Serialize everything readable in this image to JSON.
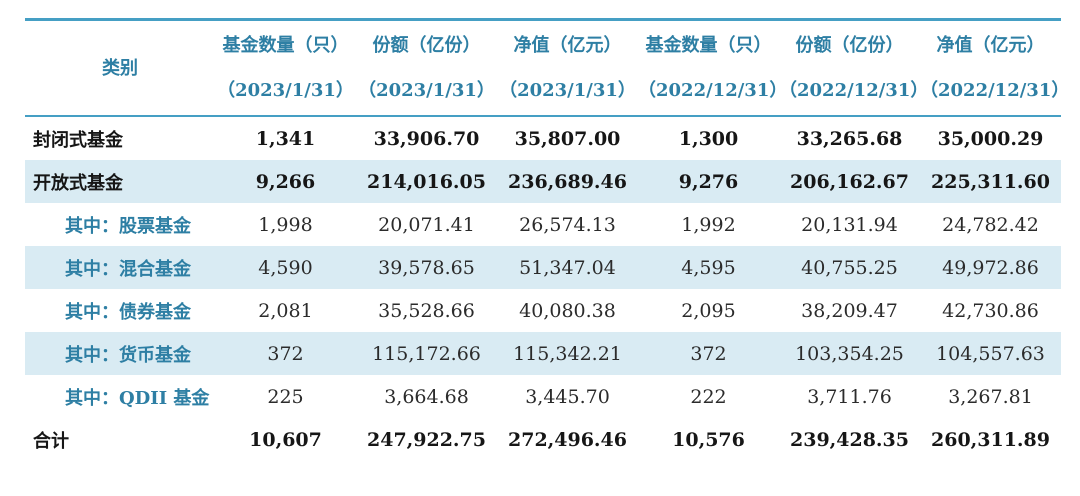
{
  "colors": {
    "accent_text": "#2e7fa4",
    "border_line": "#459fc4",
    "stripe_bg": "#d9ebf3",
    "value_text": "#2b2b2b"
  },
  "table": {
    "columns": [
      {
        "label": "类别",
        "sub": ""
      },
      {
        "label": "基金数量（只）",
        "sub": "（2023/1/31）"
      },
      {
        "label": "份额（亿份）",
        "sub": "（2023/1/31）"
      },
      {
        "label": "净值（亿元）",
        "sub": "（2023/1/31）"
      },
      {
        "label": "基金数量（只）",
        "sub": "（2022/12/31）"
      },
      {
        "label": "份额（亿份）",
        "sub": "（2022/12/31）"
      },
      {
        "label": "净值（亿元）",
        "sub": "（2022/12/31）"
      }
    ],
    "rows": [
      {
        "label": "封闭式基金",
        "values": [
          "1,341",
          "33,906.70",
          "35,807.00",
          "1,300",
          "33,265.68",
          "35,000.29"
        ]
      },
      {
        "label": "开放式基金",
        "values": [
          "9,266",
          "214,016.05",
          "236,689.46",
          "9,276",
          "206,162.67",
          "225,311.60"
        ]
      },
      {
        "label": "其中：股票基金",
        "values": [
          "1,998",
          "20,071.41",
          "26,574.13",
          "1,992",
          "20,131.94",
          "24,782.42"
        ]
      },
      {
        "label": "其中：混合基金",
        "values": [
          "4,590",
          "39,578.65",
          "51,347.04",
          "4,595",
          "40,755.25",
          "49,972.86"
        ]
      },
      {
        "label": "其中：债券基金",
        "values": [
          "2,081",
          "35,528.66",
          "40,080.38",
          "2,095",
          "38,209.47",
          "42,730.86"
        ]
      },
      {
        "label": "其中：货币基金",
        "values": [
          "372",
          "115,172.66",
          "115,342.21",
          "372",
          "103,354.25",
          "104,557.63"
        ]
      },
      {
        "label": "其中：QDII 基金",
        "values": [
          "225",
          "3,664.68",
          "3,445.70",
          "222",
          "3,711.76",
          "3,267.81"
        ]
      },
      {
        "label": "合计",
        "values": [
          "10,607",
          "247,922.75",
          "272,496.46",
          "10,576",
          "239,428.35",
          "260,311.89"
        ]
      }
    ]
  },
  "chart_data": {
    "type": "table",
    "title": "",
    "categories": [
      "封闭式基金",
      "开放式基金",
      "其中：股票基金",
      "其中：混合基金",
      "其中：债券基金",
      "其中：货币基金",
      "其中：QDII 基金",
      "合计"
    ],
    "series": [
      {
        "name": "基金数量（只）（2023/1/31）",
        "values": [
          1341,
          9266,
          1998,
          4590,
          2081,
          372,
          225,
          10607
        ]
      },
      {
        "name": "份额（亿份）（2023/1/31）",
        "values": [
          33906.7,
          214016.05,
          20071.41,
          39578.65,
          35528.66,
          115172.66,
          3664.68,
          247922.75
        ]
      },
      {
        "name": "净值（亿元）（2023/1/31）",
        "values": [
          35807.0,
          236689.46,
          26574.13,
          51347.04,
          40080.38,
          115342.21,
          3445.7,
          272496.46
        ]
      },
      {
        "name": "基金数量（只）（2022/12/31）",
        "values": [
          1300,
          9276,
          1992,
          4595,
          2095,
          372,
          222,
          10576
        ]
      },
      {
        "name": "份额（亿份）（2022/12/31）",
        "values": [
          33265.68,
          206162.67,
          20131.94,
          40755.25,
          38209.47,
          103354.25,
          3711.76,
          239428.35
        ]
      },
      {
        "name": "净值（亿元）（2022/12/31）",
        "values": [
          35000.29,
          225311.6,
          24782.42,
          49972.86,
          42730.86,
          104557.63,
          3267.81,
          260311.89
        ]
      }
    ]
  }
}
